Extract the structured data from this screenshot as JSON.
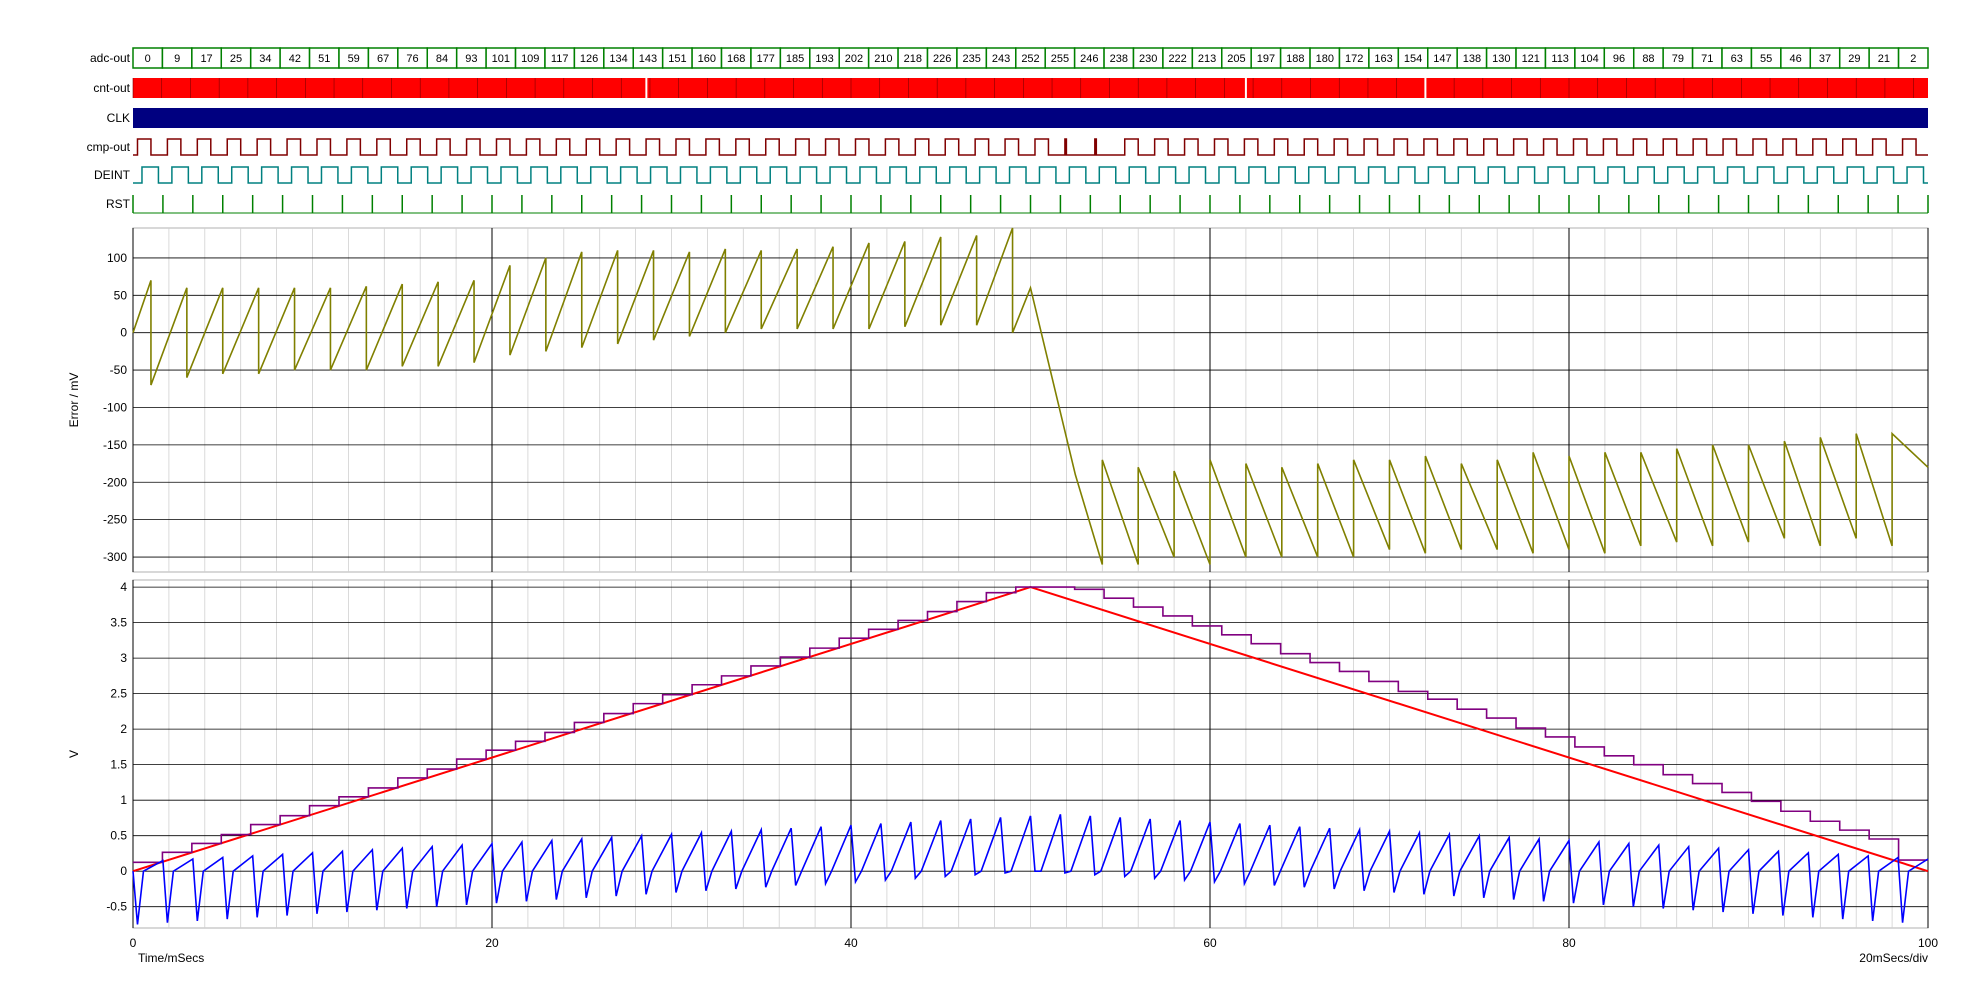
{
  "colors": {
    "adc": "#008000",
    "cnt_fill": "#ff0000",
    "clk": "#000080",
    "cmp": "#800000",
    "deint": "#008080",
    "rst": "#008000",
    "error_trace": "#808000",
    "vin": "#ff0000",
    "dac": "#800080",
    "vint": "#0000ff",
    "grid_minor": "#d0d0d0",
    "grid_major": "#000000"
  },
  "digital": {
    "labels": [
      "adc-out",
      "cnt-out",
      "CLK",
      "cmp-out",
      "DEINT",
      "RST"
    ],
    "adc_values": [
      "0",
      "9",
      "17",
      "25",
      "34",
      "42",
      "51",
      "59",
      "67",
      "76",
      "84",
      "93",
      "101",
      "109",
      "117",
      "126",
      "134",
      "143",
      "151",
      "160",
      "168",
      "177",
      "185",
      "193",
      "202",
      "210",
      "218",
      "226",
      "235",
      "243",
      "252",
      "255",
      "246",
      "238",
      "230",
      "222",
      "213",
      "205",
      "197",
      "188",
      "180",
      "172",
      "163",
      "154",
      "147",
      "138",
      "130",
      "121",
      "113",
      "104",
      "96",
      "88",
      "79",
      "71",
      "63",
      "55",
      "46",
      "37",
      "29",
      "21",
      "2"
    ]
  },
  "chart_data": [
    {
      "type": "line",
      "name": "error",
      "ylabel": "Error / mV",
      "ylim": [
        -320,
        140
      ],
      "yticks": [
        100,
        50,
        0,
        -50,
        -100,
        -150,
        -200,
        -250,
        -300
      ],
      "xlim": [
        0,
        100
      ],
      "grid": true,
      "series": [
        {
          "x": [
            0,
            1,
            1,
            3,
            3,
            5,
            5,
            7,
            7,
            9,
            9,
            11,
            11,
            13,
            13,
            15,
            15,
            17,
            17,
            19,
            19,
            21,
            21,
            23,
            23,
            25,
            25,
            27,
            27,
            29,
            29,
            31,
            31,
            33,
            33,
            35,
            35,
            37,
            37,
            39,
            39,
            41,
            41,
            43,
            43,
            45,
            45,
            47,
            47,
            49,
            49,
            50,
            52,
            52.5,
            54,
            54,
            56,
            56,
            58,
            58,
            60,
            60,
            62,
            62,
            64,
            64,
            66,
            66,
            68,
            68,
            70,
            70,
            72,
            72,
            74,
            74,
            76,
            76,
            78,
            78,
            80,
            80,
            82,
            82,
            84,
            84,
            86,
            86,
            88,
            88,
            90,
            90,
            92,
            92,
            94,
            94,
            96,
            96,
            98,
            98,
            100
          ],
          "y": [
            0,
            70,
            -70,
            60,
            -60,
            60,
            -55,
            60,
            -55,
            60,
            -50,
            60,
            -50,
            62,
            -50,
            65,
            -45,
            68,
            -45,
            70,
            -40,
            90,
            -30,
            100,
            -25,
            108,
            -20,
            110,
            -15,
            110,
            -10,
            108,
            -5,
            112,
            0,
            110,
            5,
            112,
            5,
            115,
            5,
            120,
            5,
            122,
            8,
            128,
            10,
            130,
            10,
            140,
            0,
            60,
            -140,
            -190,
            -310,
            -170,
            -310,
            -180,
            -300,
            -185,
            -310,
            -170,
            -300,
            -175,
            -300,
            -180,
            -300,
            -175,
            -300,
            -170,
            -290,
            -170,
            -295,
            -165,
            -290,
            -175,
            -290,
            -170,
            -295,
            -160,
            -290,
            -165,
            -295,
            -160,
            -285,
            -160,
            -280,
            -155,
            -285,
            -150,
            -280,
            -150,
            -275,
            -145,
            -285,
            -140,
            -275,
            -135,
            -285,
            -135,
            -180
          ]
        }
      ]
    },
    {
      "type": "line",
      "name": "voltages",
      "ylabel": "V",
      "xlabel": "Time/mSecs",
      "xlim": [
        0,
        100
      ],
      "xticks": [
        0,
        20,
        40,
        60,
        80,
        100
      ],
      "ylim": [
        -0.8,
        4.1
      ],
      "yticks": [
        4,
        3.5,
        3,
        2.5,
        2,
        1.5,
        1,
        0.5,
        0,
        -0.5
      ],
      "grid": true,
      "annotation": "20mSecs/div",
      "series": [
        {
          "name": "vin",
          "x": [
            0,
            50,
            100
          ],
          "y": [
            0,
            4,
            0
          ]
        },
        {
          "name": "dac"
        },
        {
          "name": "vint"
        }
      ]
    }
  ]
}
